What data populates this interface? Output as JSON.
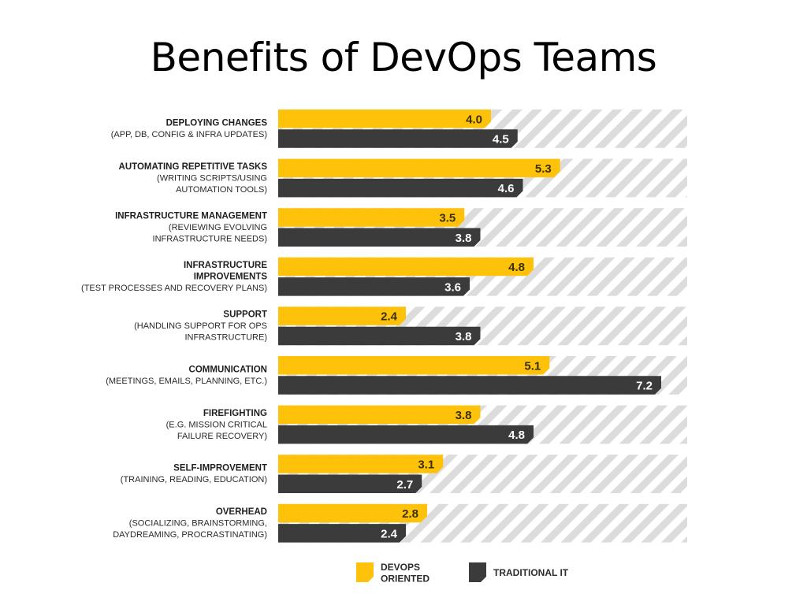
{
  "slide": {
    "title": "Benefits of DevOps Teams"
  },
  "colors": {
    "devops": "#FEC20B",
    "traditional": "#3B3B3B",
    "track_stripe": "#DCDCDC",
    "track_bg": "#FFFFFF"
  },
  "chart_data": {
    "type": "bar",
    "orientation": "horizontal",
    "categories": [
      {
        "title": [
          "DEPLOYING CHANGES"
        ],
        "subtitle": [
          "(APP, DB, CONFIG & INFRA UPDATES)"
        ]
      },
      {
        "title": [
          "AUTOMATING REPETITIVE TASKS"
        ],
        "subtitle": [
          "(WRITING SCRIPTS/USING",
          "AUTOMATION TOOLS)"
        ]
      },
      {
        "title": [
          "INFRASTRUCTURE MANAGEMENT"
        ],
        "subtitle": [
          "(REVIEWING EVOLVING",
          "INFRASTRUCTURE NEEDS)"
        ]
      },
      {
        "title": [
          "INFRASTRUCTURE",
          "IMPROVEMENTS"
        ],
        "subtitle": [
          "(TEST PROCESSES AND RECOVERY PLANS)"
        ]
      },
      {
        "title": [
          "SUPPORT"
        ],
        "subtitle": [
          "(HANDLING SUPPORT FOR OPS",
          "INFRASTRUCTURE)"
        ]
      },
      {
        "title": [
          "COMMUNICATION"
        ],
        "subtitle": [
          "(MEETINGS, EMAILS, PLANNING, ETC.)"
        ]
      },
      {
        "title": [
          "FIREFIGHTING"
        ],
        "subtitle": [
          "(E.G. MISSION CRITICAL",
          "FAILURE RECOVERY)"
        ]
      },
      {
        "title": [
          "SELF-IMPROVEMENT"
        ],
        "subtitle": [
          "(TRAINING, READING, EDUCATION)"
        ]
      },
      {
        "title": [
          "OVERHEAD"
        ],
        "subtitle": [
          "(SOCIALIZING, BRAINSTORMING,",
          "DAYDREAMING, PROCRASTINATING)"
        ]
      }
    ],
    "series": [
      {
        "name": "DEVOPS ORIENTED",
        "legend_lines": [
          "DEVOPS",
          "ORIENTED"
        ],
        "values": [
          4.0,
          5.3,
          3.5,
          4.8,
          2.4,
          5.1,
          3.8,
          3.1,
          2.8
        ],
        "labels": [
          "4.0",
          "5.3",
          "3.5",
          "4.8",
          "2.4",
          "5.1",
          "3.8",
          "3.1",
          "2.8"
        ]
      },
      {
        "name": "TRADITIONAL IT",
        "legend_lines": [
          "TRADITIONAL IT"
        ],
        "values": [
          4.5,
          4.6,
          3.8,
          3.6,
          3.8,
          7.2,
          4.8,
          2.7,
          2.4
        ],
        "labels": [
          "4.5",
          "4.6",
          "3.8",
          "3.6",
          "3.8",
          "7.2",
          "4.8",
          "2.7",
          "2.4"
        ]
      }
    ],
    "xlim": [
      0,
      8
    ],
    "grid": false,
    "legend_position": "bottom"
  }
}
